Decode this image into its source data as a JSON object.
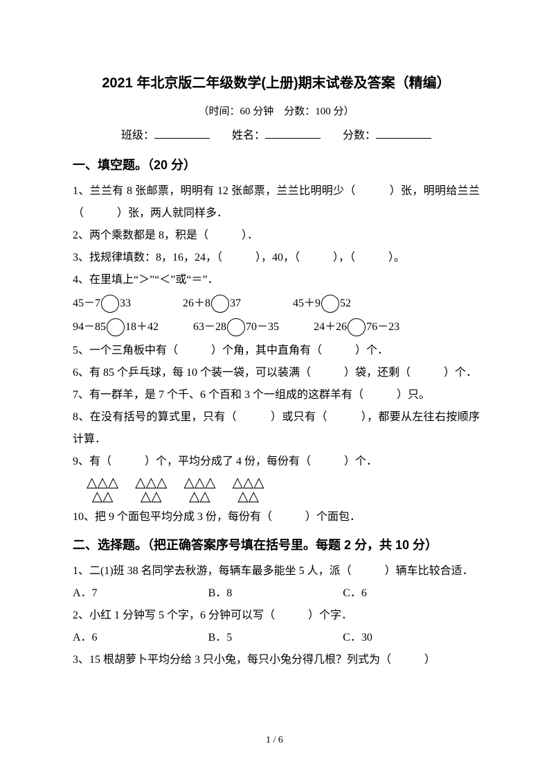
{
  "title": "2021 年北京版二年级数学(上册)期末试卷及答案（精编）",
  "subtitle": "（时间：60 分钟　分数：100 分）",
  "info": {
    "class_label": "班级：",
    "name_label": "姓名：",
    "score_label": "分数："
  },
  "section1": {
    "head": "一、填空题。（20 分）",
    "q1": "1、兰兰有 8 张邮票，明明有 12 张邮票，兰兰比明明少（　　　）张，明明给兰兰（　　　）张，两人就同样多．",
    "q2": "2、两个乘数都是 8，积是（　　　）．",
    "q3": "3、找规律填数：8，16，24，（　　　），40，（　　　），（　　　）。",
    "q4": "4、在里填上“＞”“＜”或“＝”．",
    "q4row1": {
      "a1": "45－7",
      "a2": "33",
      "b1": "26＋8",
      "b2": "37",
      "c1": "45＋9",
      "c2": "52"
    },
    "q4row2": {
      "a1": "94－85",
      "a2": "18＋42",
      "b1": "63－28",
      "b2": "70－35",
      "c1": "24＋26",
      "c2": "76－23"
    },
    "q5": "5、一个三角板中有（　　　）个角，其中直角有（　　　）个．",
    "q6": "6、有 85 个乒乓球，每 10 个装一袋，可以装满（　　　）袋，还剩（　　　）个．",
    "q7": "7、有一群羊，是 7 个千、6 个百和 3 个一组成的这群羊有（　　　）只。",
    "q8": "8、在没有括号的算式里，只有（　　　）或只有（　　　），都要从左往右按顺序计算．",
    "q9": "9、有（　　　）个，平均分成了 4 份，每份有（　　　）个．",
    "q10": "10、把 9 个面包平均分成 3 份，每份有（　　　）个面包．"
  },
  "section2": {
    "head": "二、选择题。（把正确答案序号填在括号里。每题 2 分，共 10 分）",
    "q1": "1、二(1)班 38 名同学去秋游，每辆车最多能坐 5 人，派（　　　）辆车比较合适．",
    "q1opts": {
      "a": "A．7",
      "b": "B．8",
      "c": "C．6"
    },
    "q2": "2、小红 1 分钟写 5 个字，6 分钟可以写（　　　）个字．",
    "q2opts": {
      "a": "A．6",
      "b": "B．5",
      "c": "C．30"
    },
    "q3": "3、15 根胡萝卜平均分给 3 只小兔，每只小兔分得几根？列式为（　　　）"
  },
  "triangle_glyph": "△",
  "pager": "1 / 6",
  "colors": {
    "text": "#000000",
    "background": "#ffffff"
  }
}
